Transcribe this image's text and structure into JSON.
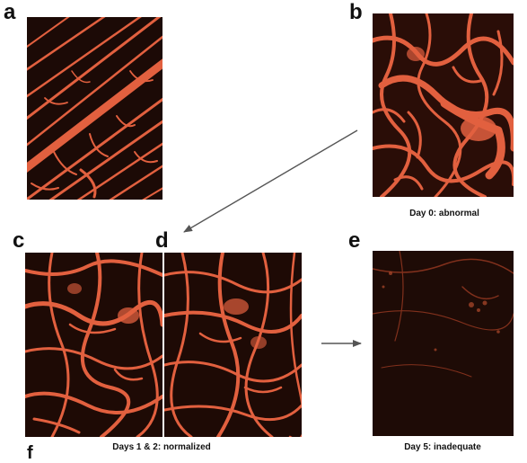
{
  "panels": {
    "a": {
      "letter": "a"
    },
    "b": {
      "letter": "b",
      "caption": "Day 0: abnormal"
    },
    "c": {
      "letter": "c"
    },
    "d": {
      "letter": "d"
    },
    "cd": {
      "caption": "Days 1 & 2: normalized"
    },
    "e": {
      "letter": "e",
      "caption": "Day 5: inadequate"
    },
    "f": {
      "letter": "f"
    }
  },
  "colors": {
    "vessel": "#e2603f",
    "vessel_dim": "#9a3a22",
    "background": "#1c0a06",
    "arrow": "#555555"
  },
  "icons": {
    "arrow_b_to_d": "diagonal-arrow-icon",
    "arrow_cd_to_e": "right-arrow-icon"
  }
}
